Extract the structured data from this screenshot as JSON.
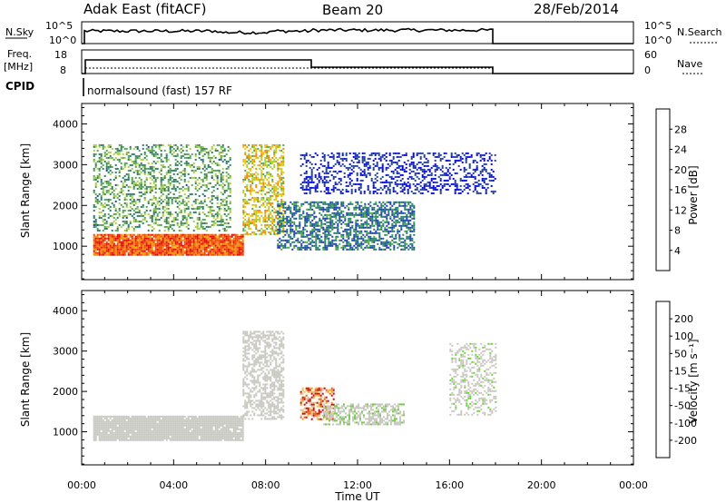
{
  "header": {
    "radar": "Adak East (fitACF)",
    "beam": "Beam 20",
    "date": "28/Feb/2014"
  },
  "strips": {
    "nsky": {
      "left_label": "N.Sky",
      "right_label": "N.Search",
      "left_ticks": [
        "10^5",
        "10^0"
      ],
      "right_ticks": [
        "10^5",
        "10^0"
      ]
    },
    "freq": {
      "left_label_1": "Freq.",
      "left_label_2": "[MHz]",
      "right_label": "Nave",
      "left_ticks": [
        "18",
        "8"
      ],
      "right_ticks": [
        "60",
        "0"
      ]
    },
    "cpid": {
      "label": "CPID",
      "program": "normalsound (fast) 157 RF"
    }
  },
  "colors": {
    "power": [
      "#0000ff",
      "#1f3fa0",
      "#2a7a6a",
      "#4fa84a",
      "#a8d030",
      "#f0c010",
      "#f08a00",
      "#f04000",
      "#e80000"
    ],
    "velocity": [
      "#e00000",
      "#ff5a00",
      "#ff9a00",
      "#f0c040",
      "#c8c8c0",
      "#c8c8c0",
      "#70d040",
      "#3a9a50",
      "#2a6a80",
      "#1a2ab0"
    ]
  },
  "chart_data": [
    {
      "type": "heatmap",
      "title": "",
      "xlabel": "Time UT",
      "ylabel": "Slant Range [km]",
      "xlim": [
        0,
        24
      ],
      "ylim": [
        180,
        4500
      ],
      "x_ticks": [
        "00:00",
        "04:00",
        "08:00",
        "12:00",
        "16:00",
        "20:00",
        "00:00"
      ],
      "y_ticks": [
        1000,
        2000,
        3000,
        4000
      ],
      "colorbar": {
        "label": "Power [dB]",
        "range": [
          0,
          32
        ],
        "ticks": [
          4,
          8,
          12,
          16,
          20,
          24,
          28
        ]
      },
      "features": [
        {
          "t": [
            0.5,
            7.0
          ],
          "range_km": [
            800,
            1300
          ],
          "power_db": 26
        },
        {
          "t": [
            7.0,
            8.8
          ],
          "range_km": [
            1300,
            3500
          ],
          "power_db": 18
        },
        {
          "t": [
            0.5,
            6.5
          ],
          "range_km": [
            1400,
            3500
          ],
          "power_db": 12
        },
        {
          "t": [
            8.5,
            14.5
          ],
          "range_km": [
            900,
            2100
          ],
          "power_db": 8
        },
        {
          "t": [
            9.5,
            18.0
          ],
          "range_km": [
            2300,
            3300
          ],
          "power_db": 4
        }
      ]
    },
    {
      "type": "heatmap",
      "title": "",
      "xlabel": "Time UT",
      "ylabel": "Slant Range [km]",
      "xlim": [
        0,
        24
      ],
      "ylim": [
        180,
        4500
      ],
      "x_ticks": [
        "00:00",
        "04:00",
        "08:00",
        "12:00",
        "16:00",
        "20:00",
        "00:00"
      ],
      "y_ticks": [
        1000,
        2000,
        3000,
        4000
      ],
      "colorbar": {
        "label": "Velocity [m s⁻¹]",
        "range": [
          -250,
          250
        ],
        "ticks": [
          "200",
          "100",
          "50",
          "15",
          "-15",
          "-50",
          "-100",
          "-200"
        ]
      },
      "features": [
        {
          "t": [
            0.5,
            7.0
          ],
          "range_km": [
            800,
            1400
          ],
          "velocity": 0
        },
        {
          "t": [
            7.0,
            8.8
          ],
          "range_km": [
            1300,
            3500
          ],
          "velocity": 0
        },
        {
          "t": [
            9.5,
            11.0
          ],
          "range_km": [
            1300,
            2100
          ],
          "velocity": -150
        },
        {
          "t": [
            10.5,
            14.0
          ],
          "range_km": [
            1200,
            1700
          ],
          "velocity": 30
        },
        {
          "t": [
            16.0,
            18.0
          ],
          "range_km": [
            1400,
            3200
          ],
          "velocity": 40
        }
      ]
    }
  ],
  "time_axis": {
    "label": "Time UT",
    "ticks": [
      "00:00",
      "04:00",
      "08:00",
      "12:00",
      "16:00",
      "20:00",
      "00:00"
    ]
  }
}
